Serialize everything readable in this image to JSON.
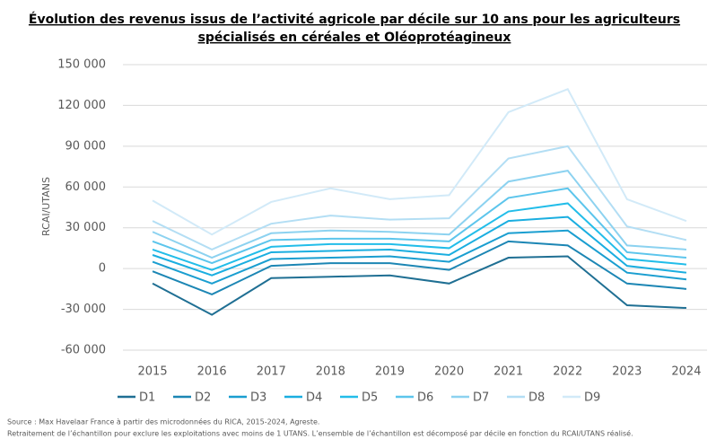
{
  "chart_data": {
    "type": "line",
    "title_lines": [
      "Évolution des revenus issus de l’activité agricole par décile sur 10 ans pour les agriculteurs",
      "spécialisés en céréales et Oléoprotéagineux"
    ],
    "y_label": "RCAI/UTANS",
    "categories": [
      "2015",
      "2016",
      "2017",
      "2018",
      "2019",
      "2020",
      "2021",
      "2022",
      "2023",
      "2024"
    ],
    "ylim": [
      -60000,
      150000
    ],
    "yticks": [
      {
        "value": -60000,
        "label": "-60 000"
      },
      {
        "value": -30000,
        "label": "-30 000"
      },
      0,
      {
        "value": 30000,
        "label": "30 000"
      },
      {
        "value": 60000,
        "label": "60 000"
      },
      {
        "value": 90000,
        "label": "90 000"
      },
      {
        "value": 120000,
        "label": "120 000"
      },
      {
        "value": 150000,
        "label": "150 000"
      }
    ],
    "grid": true,
    "series": [
      {
        "name": "D1",
        "color": "#1f6f93",
        "values": [
          -11000,
          -34000,
          -7000,
          -6000,
          -5000,
          -11000,
          8000,
          9000,
          -27000,
          -29000
        ]
      },
      {
        "name": "D2",
        "color": "#1c86b4",
        "values": [
          -2000,
          -19000,
          2000,
          4000,
          4000,
          -1000,
          20000,
          17000,
          -11000,
          -15000
        ]
      },
      {
        "name": "D3",
        "color": "#1a9ed0",
        "values": [
          5000,
          -11000,
          7000,
          8000,
          9000,
          5000,
          26000,
          28000,
          -3000,
          -8000
        ]
      },
      {
        "name": "D4",
        "color": "#1aaee0",
        "values": [
          10000,
          -5000,
          12000,
          13000,
          14000,
          10000,
          35000,
          38000,
          2000,
          -3000
        ]
      },
      {
        "name": "D5",
        "color": "#22bde9",
        "values": [
          14000,
          -1000,
          16000,
          18000,
          18000,
          15000,
          42000,
          48000,
          7000,
          3000
        ]
      },
      {
        "name": "D6",
        "color": "#5cc5ec",
        "values": [
          20000,
          4000,
          21000,
          22000,
          22000,
          20000,
          52000,
          59000,
          12000,
          8000
        ]
      },
      {
        "name": "D7",
        "color": "#8cd2f0",
        "values": [
          27000,
          8000,
          26000,
          28000,
          27000,
          25000,
          64000,
          72000,
          17000,
          14000
        ]
      },
      {
        "name": "D8",
        "color": "#b3def4",
        "values": [
          35000,
          14000,
          33000,
          39000,
          36000,
          37000,
          81000,
          90000,
          31000,
          21000
        ]
      },
      {
        "name": "D9",
        "color": "#d2eaf8",
        "values": [
          50000,
          25000,
          49000,
          59000,
          51000,
          54000,
          115000,
          132000,
          51000,
          35000
        ]
      }
    ],
    "source_lines": [
      "Source : Max Havelaar France à partir des microdonnées du RICA, 2015-2024, Agreste.",
      "Retraitement de l’échantillon pour exclure les exploitations avec moins de 1 UTANS. L’ensemble de l’échantillon est décomposé par décile en fonction du RCAI/UTANS réalisé."
    ]
  }
}
